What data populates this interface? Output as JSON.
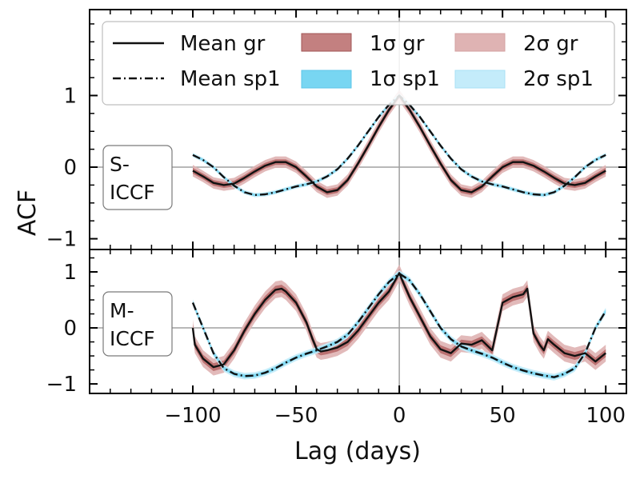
{
  "colors": {
    "gr_line": "#111111",
    "sp1_line": "#111111",
    "gr_1sigma": "#b86a6a",
    "gr_2sigma": "#dfb3b3",
    "sp1_1sigma": "#78d6f2",
    "sp1_2sigma": "#c4ecfa",
    "grid": "#a0a0a0",
    "axis": "#000000"
  },
  "chart_data": {
    "type": "line",
    "x_range": [
      -150,
      110
    ],
    "xlabel": "Lag (days)",
    "ylabel": "ACF",
    "x_ticks": [
      -100,
      -50,
      0,
      50,
      100
    ],
    "x_tick_labels": [
      "−100",
      "−50",
      "0",
      "50",
      "100"
    ],
    "legend": {
      "location": "top",
      "entries": [
        "Mean gr",
        "Mean sp1",
        "1σ gr",
        "1σ sp1",
        "2σ gr",
        "2σ sp1"
      ]
    },
    "panels": [
      {
        "name": "top",
        "label_line1": "S-",
        "label_line2": "ICCF",
        "ylim": [
          -1.15,
          2.2
        ],
        "y_ticks": [
          1,
          0,
          -1
        ],
        "y_tick_labels": [
          "1",
          "0",
          "−1"
        ],
        "series": [
          {
            "name": "Mean gr",
            "style": "solid",
            "x": [
              -100,
              -95,
              -90,
              -85,
              -80,
              -75,
              -70,
              -65,
              -60,
              -55,
              -50,
              -45,
              -40,
              -35,
              -30,
              -25,
              -20,
              -15,
              -10,
              -5,
              0,
              5,
              10,
              15,
              20,
              25,
              30,
              35,
              40,
              45,
              50,
              55,
              60,
              65,
              70,
              75,
              80,
              85,
              90,
              95,
              100
            ],
            "y": [
              -0.05,
              -0.13,
              -0.22,
              -0.25,
              -0.23,
              -0.15,
              -0.06,
              0.02,
              0.07,
              0.07,
              0.0,
              -0.13,
              -0.27,
              -0.35,
              -0.32,
              -0.18,
              0.05,
              0.3,
              0.56,
              0.8,
              1.0,
              0.8,
              0.56,
              0.3,
              0.05,
              -0.18,
              -0.32,
              -0.35,
              -0.27,
              -0.13,
              0.0,
              0.07,
              0.07,
              0.02,
              -0.06,
              -0.15,
              -0.23,
              -0.25,
              -0.22,
              -0.13,
              -0.05
            ],
            "sigma1": 0.04,
            "sigma2": 0.08
          },
          {
            "name": "Mean sp1",
            "style": "dashdot",
            "x": [
              -100,
              -95,
              -90,
              -85,
              -80,
              -75,
              -70,
              -65,
              -60,
              -55,
              -50,
              -45,
              -40,
              -35,
              -30,
              -25,
              -20,
              -15,
              -10,
              -5,
              0,
              5,
              10,
              15,
              20,
              25,
              30,
              35,
              40,
              45,
              50,
              55,
              60,
              65,
              70,
              75,
              80,
              85,
              90,
              95,
              100
            ],
            "y": [
              0.17,
              0.1,
              0.0,
              -0.14,
              -0.26,
              -0.35,
              -0.39,
              -0.38,
              -0.35,
              -0.31,
              -0.27,
              -0.24,
              -0.2,
              -0.13,
              -0.03,
              0.12,
              0.3,
              0.5,
              0.7,
              0.87,
              1.0,
              0.87,
              0.7,
              0.5,
              0.3,
              0.12,
              -0.03,
              -0.13,
              -0.2,
              -0.24,
              -0.27,
              -0.31,
              -0.35,
              -0.38,
              -0.39,
              -0.35,
              -0.26,
              -0.14,
              0.0,
              0.1,
              0.17
            ],
            "sigma1": 0.015,
            "sigma2": 0.03
          }
        ]
      },
      {
        "name": "bottom",
        "label_line1": "M-",
        "label_line2": "ICCF",
        "ylim": [
          -1.17,
          1.4
        ],
        "y_ticks": [
          1,
          0,
          -1
        ],
        "y_tick_labels": [
          "1",
          "0",
          "−1"
        ],
        "series": [
          {
            "name": "Mean gr",
            "style": "solid",
            "x": [
              -100,
              -99,
              -95,
              -90,
              -85,
              -80,
              -75,
              -70,
              -65,
              -60,
              -57,
              -55,
              -50,
              -45,
              -42,
              -40,
              -38,
              -35,
              -30,
              -25,
              -20,
              -15,
              -10,
              -5,
              -2,
              0,
              2,
              5,
              10,
              15,
              20,
              25,
              30,
              35,
              40,
              45,
              50,
              55,
              60,
              62,
              65,
              68,
              70,
              72,
              75,
              80,
              85,
              90,
              95,
              100
            ],
            "y": [
              0.0,
              -0.3,
              -0.55,
              -0.7,
              -0.65,
              -0.4,
              -0.05,
              0.25,
              0.5,
              0.68,
              0.7,
              0.65,
              0.45,
              0.1,
              -0.2,
              -0.38,
              -0.42,
              -0.4,
              -0.35,
              -0.25,
              -0.05,
              0.2,
              0.45,
              0.65,
              0.85,
              0.98,
              0.8,
              0.55,
              0.2,
              -0.15,
              -0.38,
              -0.45,
              -0.28,
              -0.3,
              -0.22,
              -0.4,
              0.45,
              0.55,
              0.6,
              0.7,
              -0.1,
              -0.3,
              -0.4,
              -0.2,
              -0.3,
              -0.45,
              -0.5,
              -0.45,
              -0.6,
              -0.45
            ],
            "sigma1": 0.07,
            "sigma2": 0.15
          },
          {
            "name": "Mean sp1",
            "style": "dashdot",
            "x": [
              -100,
              -95,
              -90,
              -85,
              -80,
              -75,
              -70,
              -65,
              -60,
              -55,
              -50,
              -45,
              -40,
              -35,
              -30,
              -25,
              -20,
              -15,
              -10,
              -5,
              0,
              5,
              10,
              15,
              20,
              25,
              30,
              35,
              40,
              45,
              50,
              55,
              60,
              65,
              70,
              75,
              80,
              85,
              90,
              95,
              100
            ],
            "y": [
              0.45,
              0.0,
              -0.45,
              -0.72,
              -0.82,
              -0.86,
              -0.85,
              -0.8,
              -0.72,
              -0.62,
              -0.53,
              -0.46,
              -0.4,
              -0.33,
              -0.25,
              -0.12,
              0.1,
              0.35,
              0.6,
              0.82,
              0.97,
              0.85,
              0.6,
              0.3,
              0.0,
              -0.2,
              -0.33,
              -0.4,
              -0.46,
              -0.53,
              -0.62,
              -0.7,
              -0.76,
              -0.81,
              -0.85,
              -0.88,
              -0.82,
              -0.72,
              -0.45,
              0.0,
              0.3
            ],
            "sigma1": 0.03,
            "sigma2": 0.06
          }
        ]
      }
    ]
  }
}
